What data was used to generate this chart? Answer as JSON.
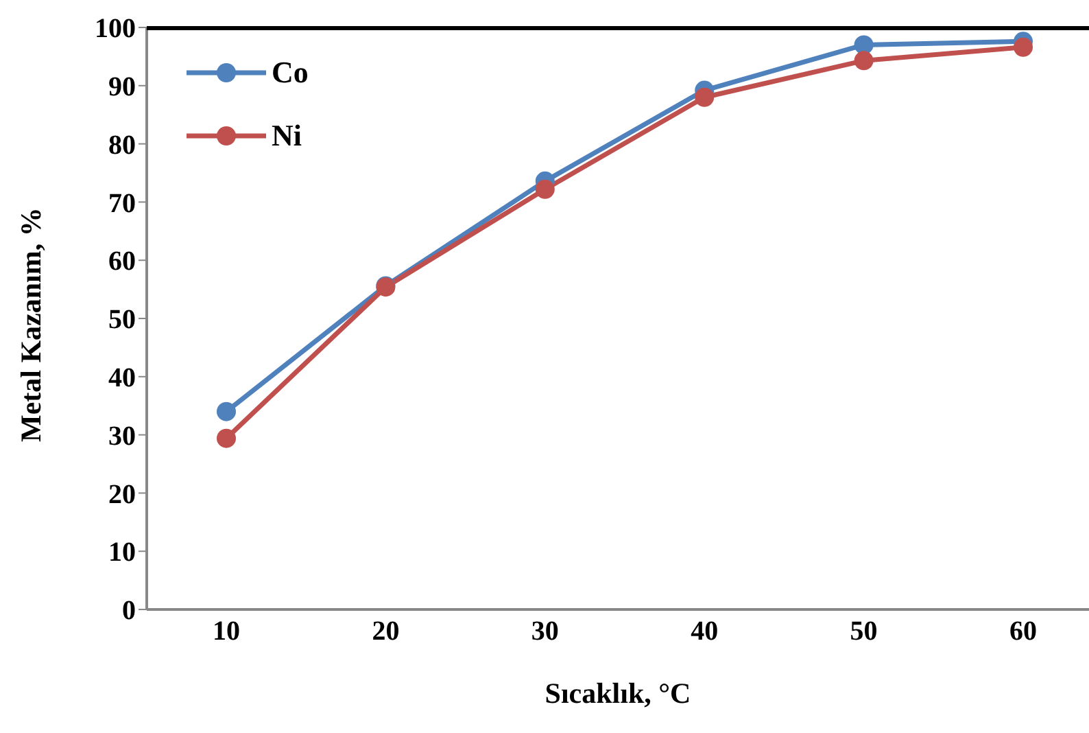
{
  "chart_data": {
    "type": "line",
    "xlabel": "Sıcaklık, °C",
    "ylabel": "Metal Kazanım, %",
    "categories": [
      "10",
      "20",
      "30",
      "40",
      "50",
      "60"
    ],
    "series": [
      {
        "name": "Co",
        "color": "#4f81bd",
        "values": [
          34,
          55.6,
          73.6,
          89.2,
          97,
          97.6
        ]
      },
      {
        "name": "Ni",
        "color": "#c0504d",
        "values": [
          29.4,
          55.4,
          72.2,
          88,
          94.3,
          96.6
        ]
      }
    ],
    "ylim": [
      0,
      100
    ],
    "yticks": [
      0,
      10,
      20,
      30,
      40,
      50,
      60,
      70,
      80,
      90,
      100
    ],
    "grid": false,
    "legend": "top left",
    "marker": "circle",
    "line_style": "solid"
  }
}
